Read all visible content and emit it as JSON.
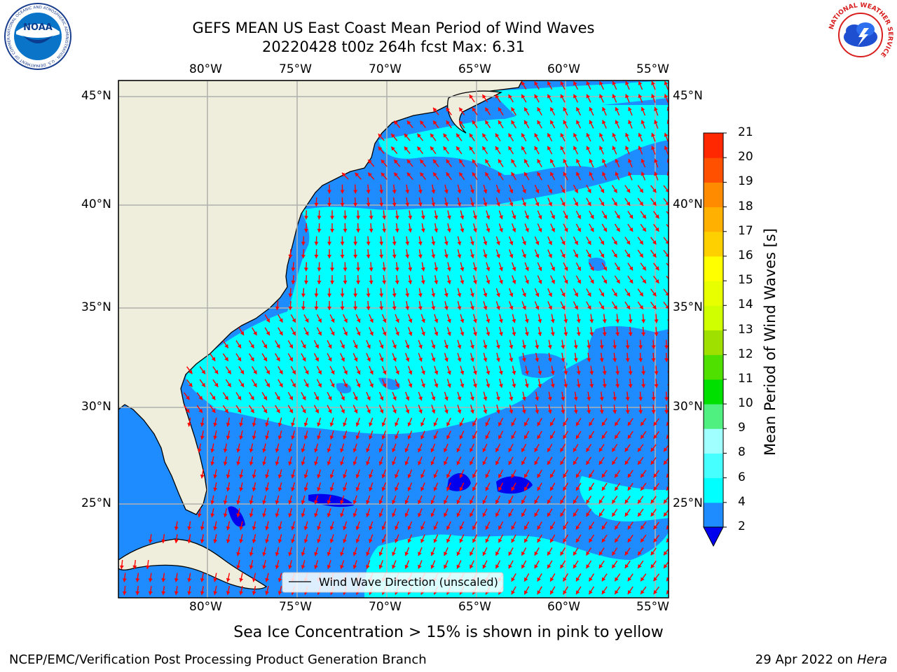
{
  "header": {
    "title_line1": "GEFS MEAN US East Coast Mean Period of Wind Waves",
    "title_line2": "20220428 t00z 264h fcst   Max: 6.31"
  },
  "map": {
    "lon_labels": [
      "80°W",
      "75°W",
      "70°W",
      "65°W",
      "60°W",
      "55°W"
    ],
    "lat_labels": [
      "45°N",
      "40°N",
      "35°N",
      "30°N",
      "25°N"
    ],
    "legend_label": "Wind Wave Direction (unscaled)",
    "colors": {
      "land": "#efeedd",
      "period_2_4": "#1e8cff",
      "period_4_6": "#00ffff",
      "period_under_2": "#0000ee",
      "arrow": "#ff0000",
      "grid": "#b0b0b0"
    }
  },
  "colorbar": {
    "title": "Mean Period of Wind Waves [s]",
    "tick_labels": [
      "2",
      "4",
      "6",
      "8",
      "9",
      "10",
      "11",
      "12",
      "13",
      "14",
      "15",
      "16",
      "17",
      "18",
      "19",
      "20",
      "21"
    ],
    "colors": [
      "#1e8cff",
      "#00ffff",
      "#46ffff",
      "#a0ffff",
      "#50f080",
      "#00e000",
      "#50e000",
      "#a0e000",
      "#d0ff00",
      "#e8ff00",
      "#ffff00",
      "#ffd000",
      "#ffb000",
      "#ff8c00",
      "#ff5000",
      "#ff2800",
      "#ff0000"
    ]
  },
  "notes": {
    "sea_ice": "Sea Ice Concentration > 15% is shown in pink to yellow"
  },
  "footer": {
    "left": "NCEP/EMC/Verification Post Processing Product Generation Branch",
    "right_date": "29 Apr 2022 on ",
    "right_host": "Hera"
  },
  "logos": {
    "left_text": "NOAA",
    "left_ring_text": "NATIONAL OCEANIC AND ATMOSPHERIC ADMINISTRATION · U.S. DEPARTMENT OF COMMERCE",
    "right_ring_text": "NATIONAL WEATHER SERVICE"
  }
}
